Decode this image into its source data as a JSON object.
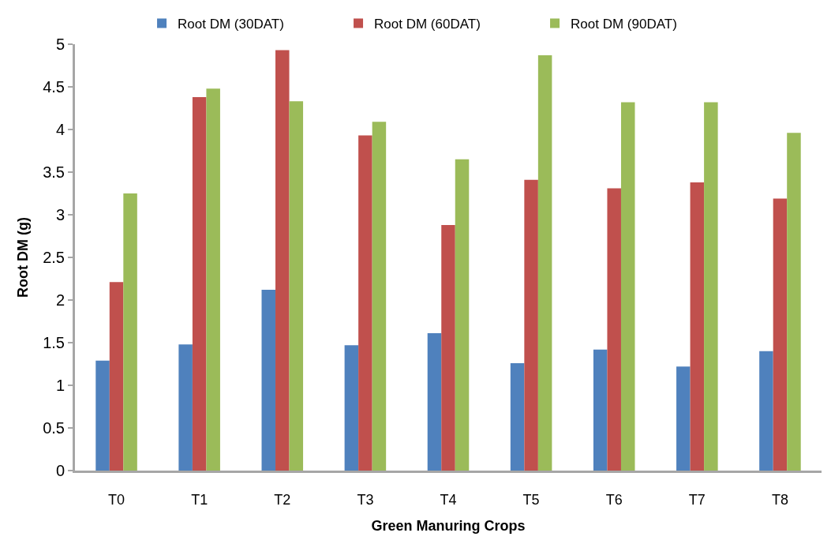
{
  "chart_data": {
    "type": "bar",
    "xlabel": "Green Manuring Crops",
    "ylabel": "Root DM (g)",
    "categories": [
      "T0",
      "T1",
      "T2",
      "T3",
      "T4",
      "T5",
      "T6",
      "T7",
      "T8"
    ],
    "series": [
      {
        "name": "Root DM (30DAT)",
        "color": "#4f81bd",
        "values": [
          1.29,
          1.48,
          2.12,
          1.47,
          1.61,
          1.26,
          1.42,
          1.22,
          1.4
        ]
      },
      {
        "name": "Root DM (60DAT)",
        "color": "#c0504d",
        "values": [
          2.21,
          4.38,
          4.93,
          3.93,
          2.88,
          3.41,
          3.31,
          3.38,
          3.19
        ]
      },
      {
        "name": "Root DM (90DAT)",
        "color": "#9bbb59",
        "values": [
          3.25,
          4.48,
          4.33,
          4.09,
          3.65,
          4.87,
          4.32,
          4.32,
          3.96
        ]
      }
    ],
    "ylim": [
      0,
      5
    ],
    "yticks": [
      0,
      0.5,
      1,
      1.5,
      2,
      2.5,
      3,
      3.5,
      4,
      4.5,
      5
    ],
    "grid": false,
    "legend": "top"
  }
}
